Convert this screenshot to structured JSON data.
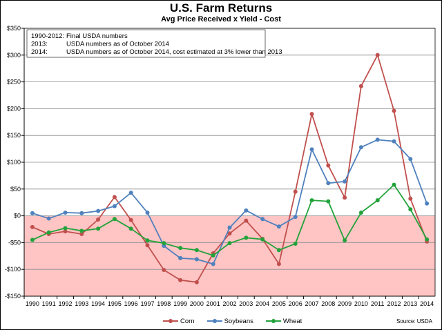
{
  "chart_data": {
    "type": "line",
    "title": "U.S. Farm Returns",
    "subtitle": "Avg Price Received x Yield - Cost",
    "x": [
      "1990",
      "1991",
      "1992",
      "1993",
      "1994",
      "1995",
      "1996",
      "1997",
      "1998",
      "1999",
      "2000",
      "2001",
      "2002",
      "2003",
      "2004",
      "2005",
      "2006",
      "2007",
      "2008",
      "2009",
      "2010",
      "2011",
      "2012",
      "2013",
      "2014"
    ],
    "ylim": [
      -150,
      350
    ],
    "yticks": [
      -150,
      -100,
      -50,
      0,
      50,
      100,
      150,
      200,
      250,
      300,
      350
    ],
    "ytick_labels": [
      "-$150",
      "-$100",
      "-$50",
      "$0",
      "$50",
      "$100",
      "$150",
      "$200",
      "$250",
      "$300",
      "$350"
    ],
    "negative_region_color": "#ffc4c4",
    "grid": true,
    "legend_position": "bottom",
    "series": [
      {
        "name": "Corn",
        "color": "#c0504d",
        "values": [
          -21,
          -34,
          -29,
          -34,
          -7,
          35,
          -8,
          -55,
          -101,
          -120,
          -124,
          -70,
          -33,
          -9,
          -43,
          -90,
          45,
          190,
          94,
          34,
          242,
          300,
          196,
          32,
          -48
        ]
      },
      {
        "name": "Soybeans",
        "color": "#4f81bd",
        "values": [
          5,
          -5,
          6,
          5,
          9,
          18,
          43,
          6,
          -56,
          -79,
          -81,
          -90,
          -22,
          10,
          -6,
          -20,
          -2,
          124,
          61,
          64,
          128,
          142,
          139,
          106,
          23
        ]
      },
      {
        "name": "Wheat",
        "color": "#22a33a",
        "values": [
          -45,
          -31,
          -23,
          -28,
          -24,
          -6,
          -24,
          -46,
          -51,
          -60,
          -64,
          -74,
          -51,
          -41,
          -44,
          -64,
          -52,
          29,
          27,
          -46,
          6,
          29,
          58,
          12,
          -44
        ]
      }
    ],
    "notes": [
      {
        "label": "1990-2012:",
        "text": "Final USDA numbers"
      },
      {
        "label": "2013:",
        "text": "USDA numbers as of October 2014"
      },
      {
        "label": "2014:",
        "text": "USDA numbers as of October 2014,  cost estimated at 3% lower than 2013"
      }
    ],
    "source": "Source: USDA"
  }
}
